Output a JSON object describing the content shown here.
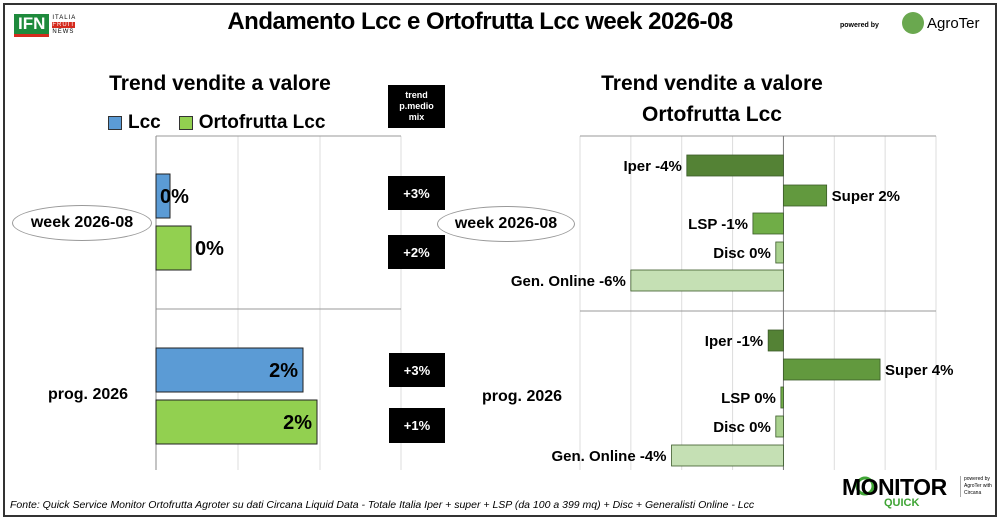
{
  "header": {
    "title": "Andamento Lcc e Ortofrutta Lcc week 2026-08",
    "logo_left": "IFN ITALIA FRUIT NEWS",
    "powered_by": "powered by",
    "logo_right": "AgroTer"
  },
  "left": {
    "title": "Trend vendite a valore",
    "mix_header": "trend p.medio mix",
    "mix": [
      "+3%",
      "+2%",
      "+3%",
      "+1%"
    ]
  },
  "right": {
    "title_line1": "Trend vendite a valore",
    "title_line2": "Ortofrutta Lcc"
  },
  "colors": {
    "Lcc": "#5b9bd5",
    "Ortofrutta Lcc": "#92d050",
    "Iper": "#548235",
    "Super": "#62993e",
    "LSP": "#70ad47",
    "Disc": "#a9d18e",
    "Gen. Online": "#c5e0b4"
  },
  "chart_data": [
    {
      "type": "bar",
      "orientation": "horizontal",
      "title": "Trend vendite a valore",
      "categories": [
        "week 2026-08",
        "prog. 2026"
      ],
      "series": [
        {
          "name": "Lcc",
          "values": [
            0.1,
            2.0
          ],
          "labels": [
            "0%",
            "2%"
          ]
        },
        {
          "name": "Ortofrutta Lcc",
          "values": [
            0.4,
            2.2
          ],
          "labels": [
            "0%",
            "2%"
          ]
        }
      ],
      "xlim": [
        -0.1,
        3.4
      ],
      "grid": true,
      "legend": "top"
    },
    {
      "type": "bar",
      "orientation": "horizontal",
      "title": "Trend vendite a valore Ortofrutta Lcc",
      "categories": [
        "week 2026-08",
        "prog. 2026"
      ],
      "channels": [
        "Iper",
        "Super",
        "LSP",
        "Disc",
        "Gen. Online"
      ],
      "groups": [
        {
          "values": [
            -3.8,
            1.7,
            -1.2,
            -0.3,
            -6.0
          ],
          "labels": [
            "Iper -4%",
            "Super 2%",
            "LSP -1%",
            "Disc 0%",
            "Gen. Online -6%"
          ]
        },
        {
          "values": [
            -0.6,
            3.8,
            -0.1,
            -0.3,
            -4.4
          ],
          "labels": [
            "Iper -1%",
            "Super 4%",
            "LSP 0%",
            "Disc 0%",
            "Gen. Online -4%"
          ]
        }
      ],
      "xlim": [
        -8,
        6
      ],
      "grid": true
    }
  ],
  "footer": {
    "source": "Fonte: Quick Service Monitor Ortofrutta Agroter su dati Circana Liquid Data - Totale Italia Iper + super + LSP (da 100 a 399 mq) + Disc + Generalisti Online - Lcc",
    "brand": "MONITOR",
    "brand_sub": "QUICK",
    "brand_side": "powered by AgroTer with Circana"
  }
}
